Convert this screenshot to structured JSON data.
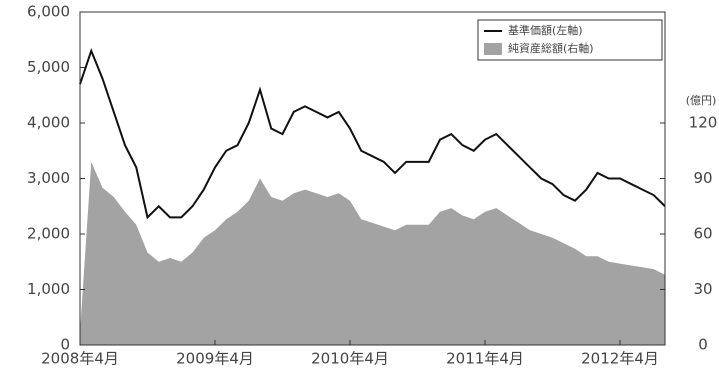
{
  "chart_data": {
    "type": "line-area",
    "x": [
      "2008-04",
      "2008-05",
      "2008-06",
      "2008-07",
      "2008-08",
      "2008-09",
      "2008-10",
      "2008-11",
      "2008-12",
      "2009-01",
      "2009-02",
      "2009-03",
      "2009-04",
      "2009-05",
      "2009-06",
      "2009-07",
      "2009-08",
      "2009-09",
      "2009-10",
      "2009-11",
      "2009-12",
      "2010-01",
      "2010-02",
      "2010-03",
      "2010-04",
      "2010-05",
      "2010-06",
      "2010-07",
      "2010-08",
      "2010-09",
      "2010-10",
      "2010-11",
      "2010-12",
      "2011-01",
      "2011-02",
      "2011-03",
      "2011-04",
      "2011-05",
      "2011-06",
      "2011-07",
      "2011-08",
      "2011-09",
      "2011-10",
      "2011-11",
      "2011-12",
      "2012-01",
      "2012-02",
      "2012-03",
      "2012-04",
      "2012-05",
      "2012-06",
      "2012-07",
      "2012-08"
    ],
    "series": [
      {
        "name": "純資産総額(右軸)",
        "color": "#a3a3a3",
        "axis": "y2",
        "kind": "area",
        "values": [
          7,
          99,
          85,
          80,
          72,
          65,
          50,
          45,
          47,
          45,
          50,
          58,
          62,
          68,
          72,
          78,
          90,
          80,
          78,
          82,
          84,
          82,
          80,
          82,
          78,
          68,
          66,
          64,
          62,
          65,
          65,
          65,
          72,
          74,
          70,
          68,
          72,
          74,
          70,
          66,
          62,
          60,
          58,
          55,
          52,
          48,
          48,
          45,
          44,
          43,
          42,
          41,
          38
        ]
      },
      {
        "name": "基準価額(左軸)",
        "color": "#111111",
        "kind": "line",
        "values": [
          4700,
          5300,
          4800,
          4200,
          3600,
          3200,
          2300,
          2500,
          2300,
          2300,
          2500,
          2800,
          3200,
          3500,
          3600,
          4000,
          4600,
          3900,
          3800,
          4200,
          4300,
          4200,
          4100,
          4200,
          3900,
          3500,
          3400,
          3300,
          3100,
          3300,
          3300,
          3300,
          3700,
          3800,
          3600,
          3500,
          3700,
          3800,
          3600,
          3400,
          3200,
          3000,
          2900,
          2700,
          2600,
          2800,
          3100,
          3000,
          3000,
          2900,
          2800,
          2700,
          2500
        ]
      }
    ],
    "xlim": [
      "2008-04",
      "2012-08"
    ],
    "xticks": [
      {
        "value": "2008-04",
        "label": "2008年4月"
      },
      {
        "value": "2009-04",
        "label": "2009年4月"
      },
      {
        "value": "2010-04",
        "label": "2010年4月"
      },
      {
        "value": "2011-04",
        "label": "2011年4月"
      },
      {
        "value": "2012-04",
        "label": "2012年4月"
      }
    ],
    "ylim": [
      0,
      6000
    ],
    "yticks": [
      0,
      {
        "value": 1000,
        "label": "1,000"
      },
      {
        "value": 2000,
        "label": "2,000"
      },
      {
        "value": 3000,
        "label": "3,000"
      },
      {
        "value": 4000,
        "label": "4,000"
      },
      {
        "value": 5000,
        "label": "5,000"
      },
      {
        "value": 6000,
        "label": "6,000"
      }
    ],
    "y2lim": [
      0,
      180
    ],
    "y2ticks": [
      0,
      30,
      60,
      90,
      120
    ],
    "y2label": "(億円)",
    "legend": "top-right"
  }
}
